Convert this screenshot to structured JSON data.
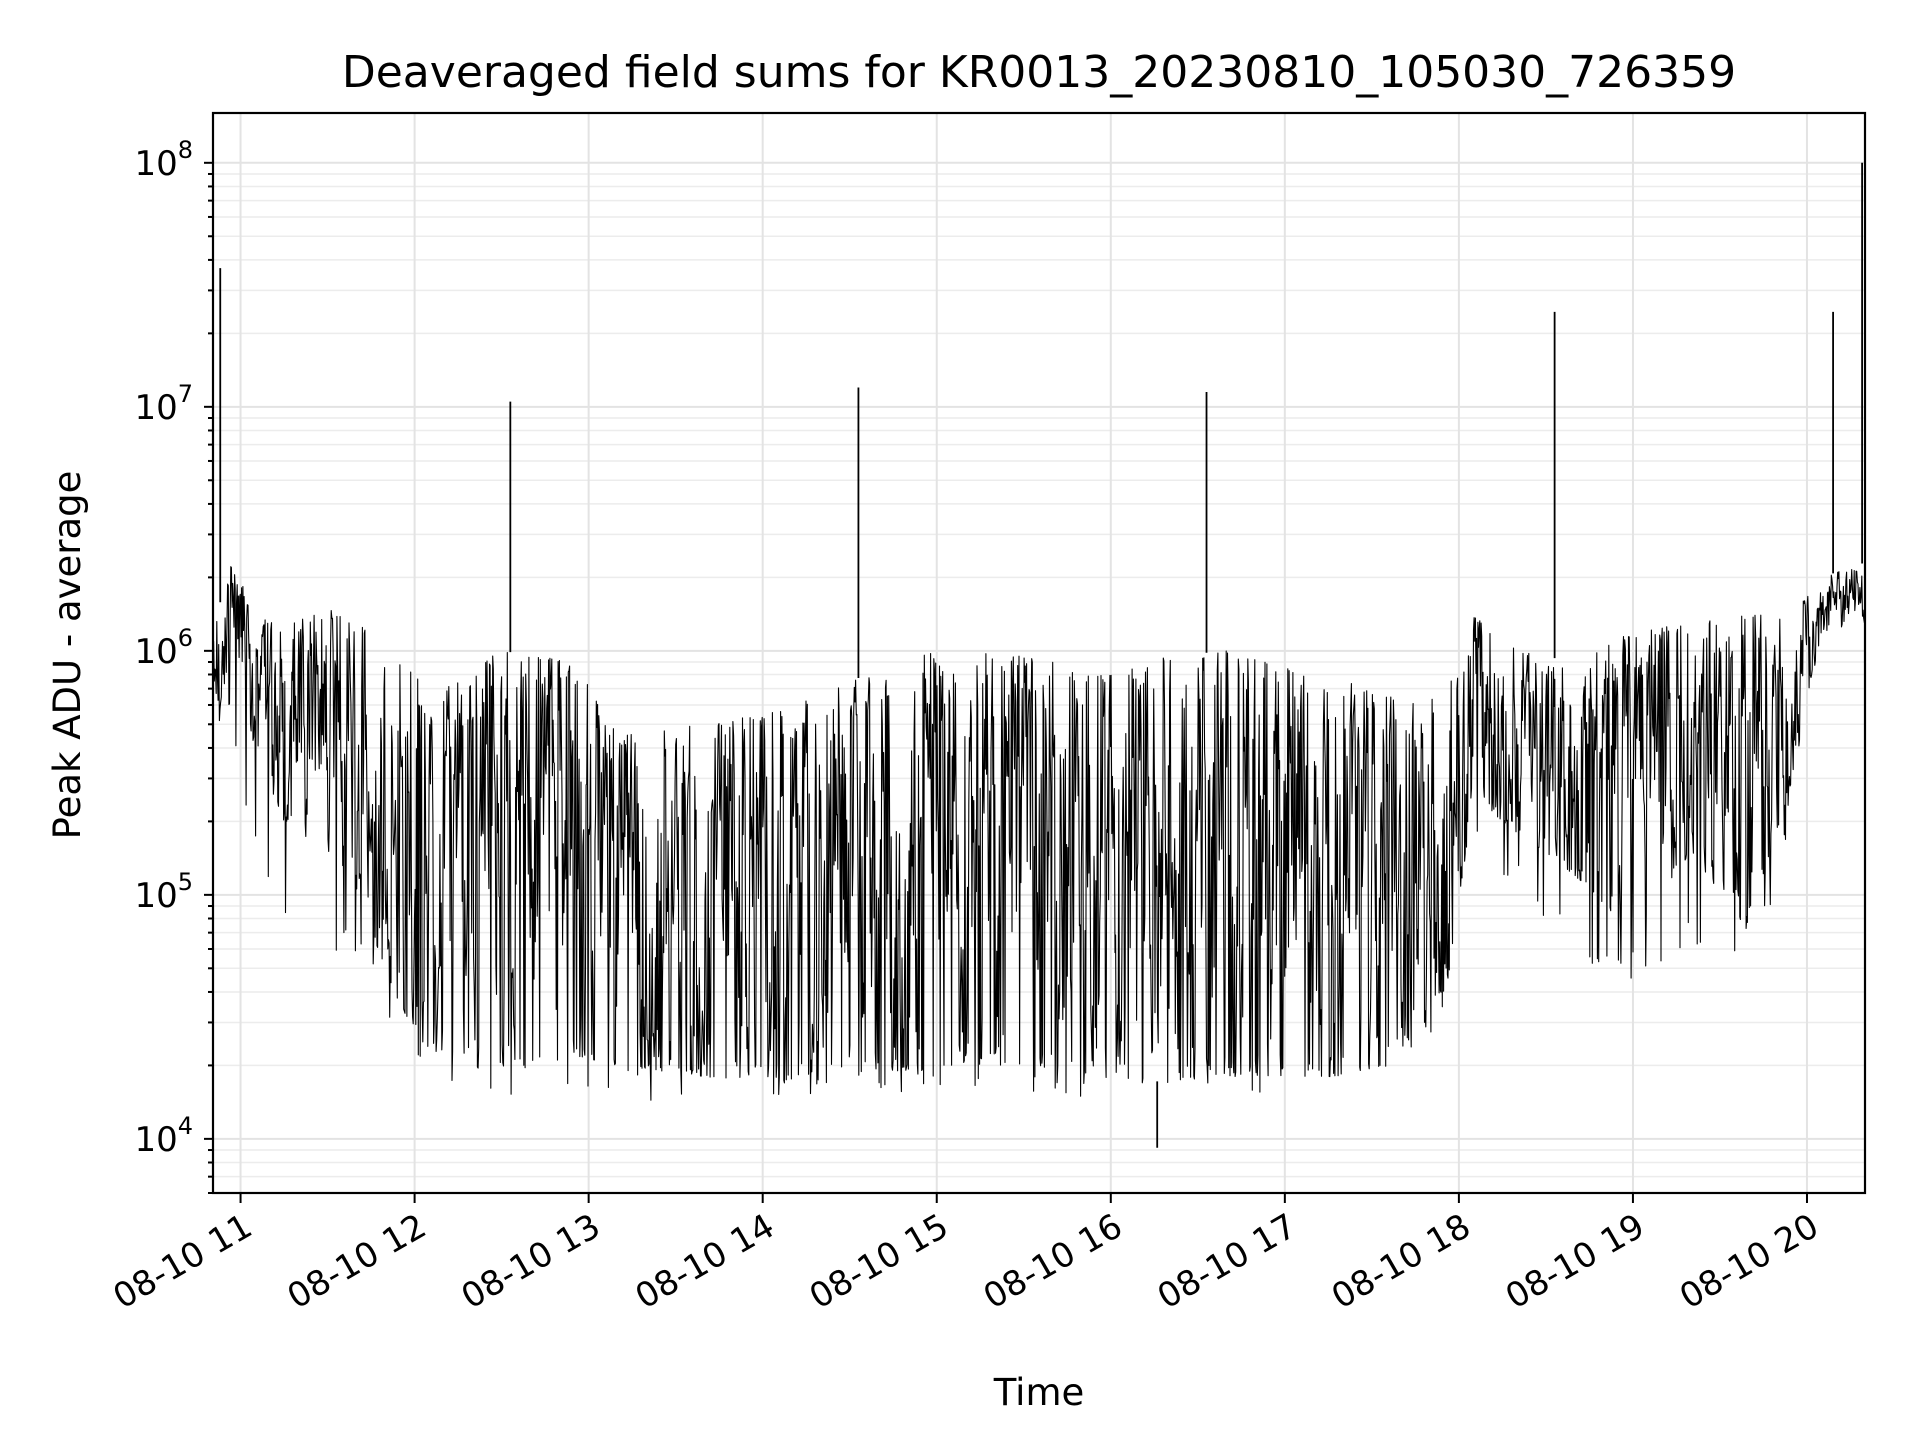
{
  "chart_data": {
    "type": "line",
    "title": "Deaveraged field sums for KR0013_20230810_105030_726359",
    "xlabel": "Time",
    "ylabel": "Peak ADU - average",
    "yscale": "log",
    "ylim": [
      6000,
      160000000
    ],
    "xlim": [
      "2023-08-10 10:50:30",
      "2023-08-10 20:20:00"
    ],
    "grid": true,
    "color": "#000000",
    "x_ticks": [
      {
        "at": "2023-08-10 11:00",
        "label": "08-10 11"
      },
      {
        "at": "2023-08-10 12:00",
        "label": "08-10 12"
      },
      {
        "at": "2023-08-10 13:00",
        "label": "08-10 13"
      },
      {
        "at": "2023-08-10 14:00",
        "label": "08-10 14"
      },
      {
        "at": "2023-08-10 15:00",
        "label": "08-10 15"
      },
      {
        "at": "2023-08-10 16:00",
        "label": "08-10 16"
      },
      {
        "at": "2023-08-10 17:00",
        "label": "08-10 17"
      },
      {
        "at": "2023-08-10 18:00",
        "label": "08-10 18"
      },
      {
        "at": "2023-08-10 19:00",
        "label": "08-10 19"
      },
      {
        "at": "2023-08-10 20:00",
        "label": "08-10 20"
      }
    ],
    "y_ticks": [
      {
        "value": 10000,
        "base": "10",
        "exp": "4"
      },
      {
        "value": 100000,
        "base": "10",
        "exp": "5"
      },
      {
        "value": 1000000,
        "base": "10",
        "exp": "6"
      },
      {
        "value": 10000000,
        "base": "10",
        "exp": "7"
      },
      {
        "value": 100000000,
        "base": "10",
        "exp": "8"
      }
    ],
    "envelope": {
      "time": [
        "2023-08-10 10:50",
        "2023-08-10 10:56",
        "2023-08-10 11:05",
        "2023-08-10 11:15",
        "2023-08-10 11:30",
        "2023-08-10 11:40",
        "2023-08-10 11:55",
        "2023-08-10 12:05",
        "2023-08-10 12:30",
        "2023-08-10 12:55",
        "2023-08-10 13:10",
        "2023-08-10 13:40",
        "2023-08-10 14:00",
        "2023-08-10 14:20",
        "2023-08-10 14:40",
        "2023-08-10 15:00",
        "2023-08-10 15:20",
        "2023-08-10 15:40",
        "2023-08-10 16:00",
        "2023-08-10 16:20",
        "2023-08-10 16:40",
        "2023-08-10 17:00",
        "2023-08-10 17:20",
        "2023-08-10 17:40",
        "2023-08-10 17:55",
        "2023-08-10 18:05",
        "2023-08-10 18:20",
        "2023-08-10 18:40",
        "2023-08-10 19:00",
        "2023-08-10 19:20",
        "2023-08-10 19:40",
        "2023-08-10 19:55",
        "2023-08-10 20:05",
        "2023-08-10 20:20"
      ],
      "high": [
        1000000,
        2500000,
        1400000,
        1300000,
        1500000,
        1400000,
        900000,
        700000,
        1000000,
        900000,
        450000,
        500000,
        550000,
        650000,
        850000,
        1000000,
        1000000,
        900000,
        800000,
        950000,
        1000000,
        850000,
        750000,
        650000,
        650000,
        1400000,
        1000000,
        900000,
        1200000,
        1300000,
        1400000,
        1400000,
        2000000,
        2300000
      ],
      "low": [
        350000,
        900000,
        400000,
        200000,
        150000,
        100000,
        35000,
        23000,
        18000,
        22000,
        20000,
        18000,
        17000,
        18000,
        19000,
        19000,
        22000,
        20000,
        18000,
        17000,
        18000,
        18000,
        18000,
        21000,
        35000,
        250000,
        180000,
        120000,
        70000,
        150000,
        70000,
        300000,
        1200000,
        1300000
      ],
      "dip": [
        300000,
        500000,
        150000,
        80000,
        60000,
        50000,
        25000,
        17000,
        15000,
        16000,
        14000,
        14000,
        13000,
        15000,
        15000,
        15000,
        16000,
        15000,
        14000,
        14000,
        15000,
        15000,
        16000,
        20000,
        30000,
        150000,
        100000,
        50000,
        45000,
        55000,
        40000,
        200000,
        1000000,
        1000000
      ]
    },
    "spikes": [
      {
        "time": "2023-08-10 10:53",
        "value": 37000000
      },
      {
        "time": "2023-08-10 12:33",
        "value": 10500000
      },
      {
        "time": "2023-08-10 14:33",
        "value": 12000000
      },
      {
        "time": "2023-08-10 16:33",
        "value": 11500000
      },
      {
        "time": "2023-08-10 18:33",
        "value": 24500000
      },
      {
        "time": "2023-08-10 20:09",
        "value": 24500000
      },
      {
        "time": "2023-08-10 20:19",
        "value": 100000000
      }
    ],
    "minimum": {
      "time": "2023-08-10 16:16",
      "value": 9200
    }
  }
}
